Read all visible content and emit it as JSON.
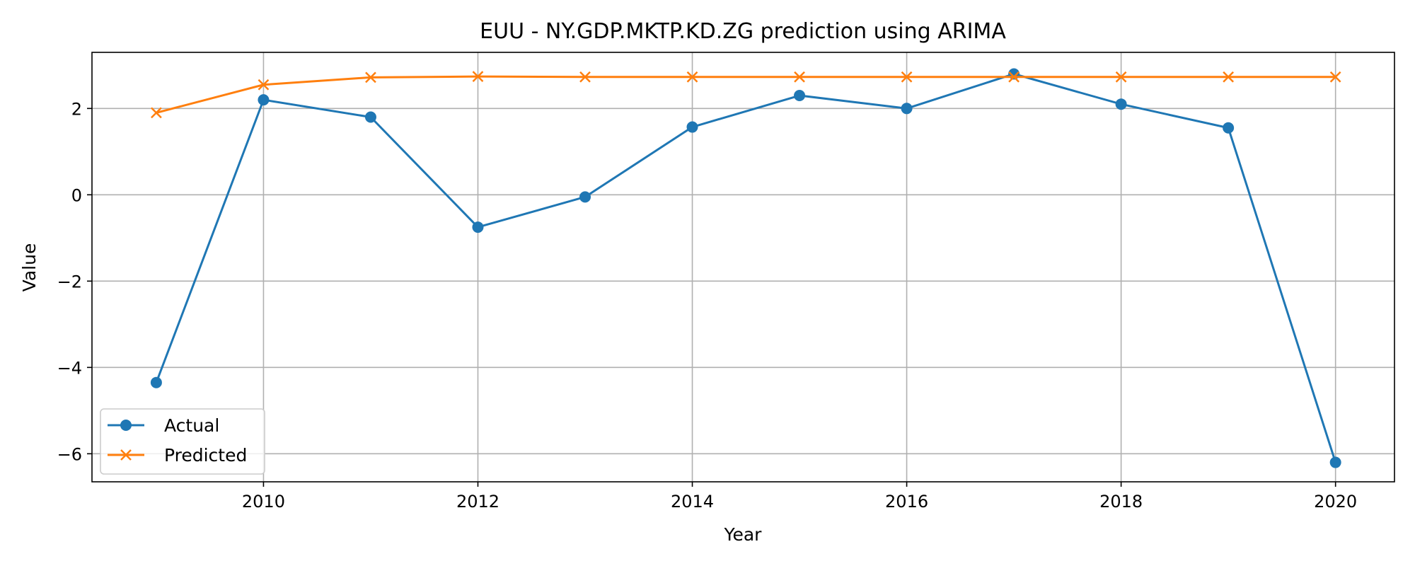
{
  "chart_data": {
    "type": "line",
    "title": "EUU - NY.GDP.MKTP.KD.ZG prediction using ARIMA",
    "xlabel": "Year",
    "ylabel": "Value",
    "x": [
      2009,
      2010,
      2011,
      2012,
      2013,
      2014,
      2015,
      2016,
      2017,
      2018,
      2019,
      2020
    ],
    "xlim": [
      2008.4,
      2020.55
    ],
    "ylim": [
      -6.65,
      3.3
    ],
    "xticks": [
      2010,
      2012,
      2014,
      2016,
      2018,
      2020
    ],
    "yticks": [
      -6,
      -4,
      -2,
      0,
      2
    ],
    "ytick_labels": [
      "−6",
      "−4",
      "−2",
      "0",
      "2"
    ],
    "grid": true,
    "legend_position": "lower-left",
    "series": [
      {
        "name": "Actual",
        "color": "#1f77b4",
        "marker": "circle",
        "values": [
          -4.35,
          2.2,
          1.8,
          -0.75,
          -0.05,
          1.57,
          2.3,
          2.0,
          2.8,
          2.1,
          1.55,
          -6.2
        ]
      },
      {
        "name": "Predicted",
        "color": "#ff7f0e",
        "marker": "x",
        "values": [
          1.9,
          2.55,
          2.72,
          2.74,
          2.73,
          2.73,
          2.73,
          2.73,
          2.73,
          2.73,
          2.73,
          2.73
        ]
      }
    ]
  }
}
